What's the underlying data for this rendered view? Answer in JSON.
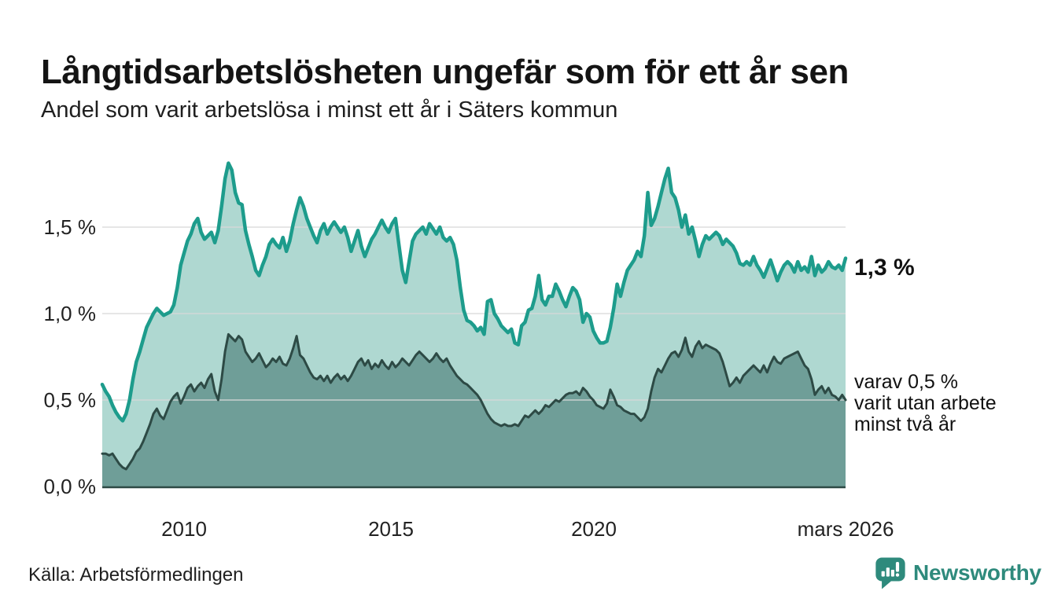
{
  "header": {
    "title": "Långtidsarbetslösheten ungefär som för ett år sen",
    "subtitle": "Andel som varit arbetslösa i minst ett år i Säters kommun"
  },
  "chart": {
    "y_axis": {
      "labels": [
        "1,5 %",
        "1,0 %",
        "0,5 %",
        "0,0 %"
      ]
    },
    "x_axis": {
      "labels": [
        "2010",
        "2015",
        "2020",
        "mars 2026"
      ]
    },
    "annotations": {
      "one_year_value": "1,3 %",
      "two_year_line1": "varav 0,5 %",
      "two_year_line2": "varit utan arbete",
      "two_year_line3": "minst två år"
    }
  },
  "footer": {
    "source": "Källa: Arbetsförmedlingen",
    "brand": "Newsworthy"
  },
  "colors": {
    "one_year_line": "#1d9c8c",
    "one_year_fill": "#afd8d1",
    "two_year_line": "#2d4a45",
    "two_year_fill": "#6f9e98",
    "gridline": "#d8d8d8",
    "baseline": "#2d4a45",
    "brand_teal": "#2e8a7c"
  },
  "chart_data": {
    "type": "area",
    "title": "Långtidsarbetslösheten ungefär som för ett år sen",
    "subtitle": "Andel som varit arbetslösa i minst ett år i Säters kommun",
    "unit": "%",
    "frequency": "monthly",
    "x_start": "2008-01",
    "x_end": "2026-03",
    "xticks": [
      "2010",
      "2015",
      "2020",
      "mars 2026"
    ],
    "yticks": [
      0,
      0.5,
      1.0,
      1.5
    ],
    "ylim": [
      0,
      1.95
    ],
    "grid": "horizontal",
    "legend": "direct-labels-at-line-end",
    "series": [
      {
        "name": "Andel arbetslösa minst ett år",
        "end_label": "1,3 %",
        "end_value": 1.3,
        "values": [
          0.59,
          0.55,
          0.52,
          0.47,
          0.43,
          0.4,
          0.38,
          0.42,
          0.5,
          0.62,
          0.72,
          0.78,
          0.85,
          0.92,
          0.96,
          1.0,
          1.03,
          1.01,
          0.99,
          1.0,
          1.01,
          1.05,
          1.15,
          1.28,
          1.35,
          1.42,
          1.46,
          1.52,
          1.55,
          1.47,
          1.43,
          1.45,
          1.47,
          1.41,
          1.48,
          1.62,
          1.78,
          1.87,
          1.83,
          1.7,
          1.64,
          1.63,
          1.48,
          1.4,
          1.33,
          1.25,
          1.22,
          1.28,
          1.33,
          1.4,
          1.43,
          1.4,
          1.38,
          1.44,
          1.36,
          1.42,
          1.52,
          1.6,
          1.67,
          1.62,
          1.55,
          1.5,
          1.45,
          1.41,
          1.48,
          1.52,
          1.46,
          1.5,
          1.53,
          1.5,
          1.47,
          1.5,
          1.44,
          1.36,
          1.42,
          1.48,
          1.39,
          1.33,
          1.38,
          1.43,
          1.46,
          1.5,
          1.54,
          1.5,
          1.47,
          1.52,
          1.55,
          1.4,
          1.25,
          1.18,
          1.3,
          1.42,
          1.46,
          1.48,
          1.5,
          1.46,
          1.52,
          1.49,
          1.46,
          1.5,
          1.44,
          1.42,
          1.44,
          1.4,
          1.31,
          1.15,
          1.02,
          0.96,
          0.95,
          0.93,
          0.9,
          0.92,
          0.88,
          1.07,
          1.08,
          1.0,
          0.97,
          0.93,
          0.91,
          0.89,
          0.91,
          0.83,
          0.82,
          0.93,
          0.95,
          1.02,
          1.03,
          1.1,
          1.22,
          1.08,
          1.05,
          1.1,
          1.1,
          1.17,
          1.13,
          1.08,
          1.04,
          1.1,
          1.15,
          1.13,
          1.08,
          0.95,
          1.0,
          0.98,
          0.9,
          0.86,
          0.83,
          0.83,
          0.84,
          0.92,
          1.03,
          1.17,
          1.1,
          1.18,
          1.25,
          1.28,
          1.31,
          1.36,
          1.33,
          1.45,
          1.7,
          1.51,
          1.55,
          1.62,
          1.7,
          1.78,
          1.84,
          1.7,
          1.67,
          1.6,
          1.5,
          1.57,
          1.46,
          1.5,
          1.42,
          1.33,
          1.4,
          1.45,
          1.43,
          1.45,
          1.47,
          1.45,
          1.4,
          1.43,
          1.41,
          1.39,
          1.35,
          1.29,
          1.28,
          1.3,
          1.28,
          1.33,
          1.28,
          1.25,
          1.21,
          1.26,
          1.31,
          1.25,
          1.19,
          1.24,
          1.28,
          1.3,
          1.28,
          1.24,
          1.3,
          1.25,
          1.27,
          1.24,
          1.33,
          1.22,
          1.28,
          1.24,
          1.26,
          1.3,
          1.27,
          1.26,
          1.28,
          1.25,
          1.32
        ]
      },
      {
        "name": "Andel arbetslösa minst två år",
        "end_label": "varav 0,5 % varit utan arbete minst två år",
        "end_value": 0.5,
        "values": [
          0.19,
          0.19,
          0.18,
          0.19,
          0.16,
          0.13,
          0.11,
          0.1,
          0.13,
          0.16,
          0.2,
          0.22,
          0.26,
          0.31,
          0.36,
          0.42,
          0.45,
          0.41,
          0.39,
          0.44,
          0.49,
          0.52,
          0.54,
          0.48,
          0.52,
          0.57,
          0.59,
          0.55,
          0.58,
          0.6,
          0.57,
          0.62,
          0.65,
          0.55,
          0.5,
          0.62,
          0.78,
          0.88,
          0.86,
          0.84,
          0.87,
          0.85,
          0.78,
          0.75,
          0.72,
          0.74,
          0.77,
          0.73,
          0.69,
          0.71,
          0.74,
          0.72,
          0.75,
          0.71,
          0.7,
          0.74,
          0.8,
          0.87,
          0.76,
          0.74,
          0.7,
          0.66,
          0.63,
          0.62,
          0.64,
          0.61,
          0.64,
          0.6,
          0.63,
          0.65,
          0.62,
          0.64,
          0.61,
          0.64,
          0.68,
          0.72,
          0.74,
          0.7,
          0.73,
          0.68,
          0.71,
          0.69,
          0.73,
          0.7,
          0.68,
          0.72,
          0.69,
          0.71,
          0.74,
          0.72,
          0.7,
          0.73,
          0.76,
          0.78,
          0.76,
          0.74,
          0.72,
          0.74,
          0.77,
          0.74,
          0.72,
          0.74,
          0.7,
          0.67,
          0.64,
          0.62,
          0.6,
          0.59,
          0.57,
          0.55,
          0.53,
          0.5,
          0.46,
          0.42,
          0.39,
          0.37,
          0.36,
          0.35,
          0.36,
          0.35,
          0.35,
          0.36,
          0.35,
          0.38,
          0.41,
          0.4,
          0.42,
          0.44,
          0.42,
          0.44,
          0.47,
          0.46,
          0.48,
          0.5,
          0.49,
          0.51,
          0.53,
          0.54,
          0.54,
          0.55,
          0.53,
          0.57,
          0.55,
          0.52,
          0.5,
          0.47,
          0.46,
          0.45,
          0.48,
          0.56,
          0.52,
          0.47,
          0.46,
          0.44,
          0.43,
          0.42,
          0.42,
          0.4,
          0.38,
          0.4,
          0.45,
          0.55,
          0.63,
          0.68,
          0.66,
          0.7,
          0.74,
          0.77,
          0.78,
          0.75,
          0.79,
          0.86,
          0.78,
          0.75,
          0.81,
          0.84,
          0.8,
          0.82,
          0.81,
          0.8,
          0.79,
          0.77,
          0.72,
          0.65,
          0.58,
          0.6,
          0.63,
          0.6,
          0.64,
          0.66,
          0.68,
          0.7,
          0.68,
          0.66,
          0.7,
          0.66,
          0.71,
          0.75,
          0.72,
          0.71,
          0.74,
          0.75,
          0.76,
          0.77,
          0.78,
          0.74,
          0.7,
          0.68,
          0.62,
          0.53,
          0.56,
          0.58,
          0.54,
          0.57,
          0.53,
          0.52,
          0.5,
          0.53,
          0.5
        ]
      }
    ]
  }
}
